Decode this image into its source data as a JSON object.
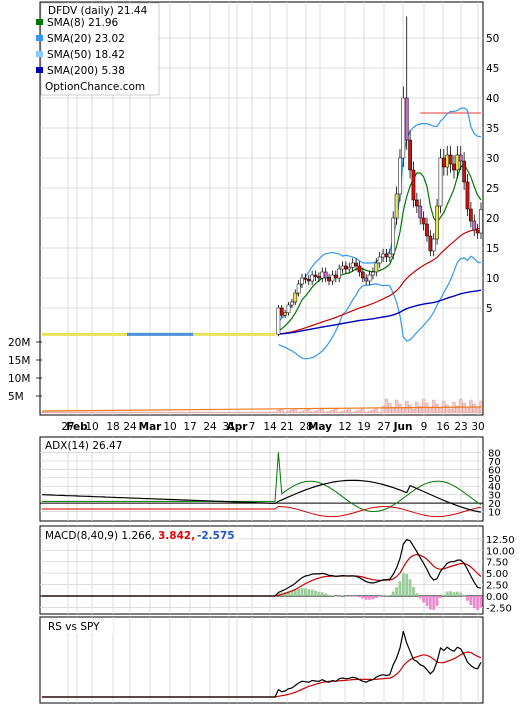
{
  "chart_data": [
    {
      "type": "line",
      "name": "price",
      "ticker": "DFDV (daily)",
      "last": "21.44",
      "source": "OptionChance.com",
      "legend": [
        {
          "label": "SMA(8)",
          "value": "21.96",
          "color": "#007700"
        },
        {
          "label": "SMA(20)",
          "value": "23.02",
          "color": "#3399ee"
        },
        {
          "label": "SMA(50)",
          "value": "18.42",
          "color": "#88ccff"
        },
        {
          "label": "SMA(200)",
          "value": "5.38",
          "color": "#0000bb"
        }
      ],
      "ylim": [
        -5,
        55
      ],
      "yticks": [
        5,
        10,
        15,
        20,
        25,
        30,
        35,
        40,
        45,
        50
      ],
      "resistance": 37.5,
      "x_ticks": [
        "27",
        "Feb",
        "10",
        "18",
        "24",
        "Mar",
        "10",
        "17",
        "24",
        "31",
        "Apr",
        "7",
        "14",
        "21",
        "28",
        "May",
        "12",
        "19",
        "27",
        "Jun",
        "9",
        "16",
        "23",
        "30"
      ],
      "volume_ticks": [
        "20M",
        "15M",
        "10M",
        "5M"
      ],
      "close": [
        0.6,
        0.6,
        0.6,
        0.6,
        0.6,
        0.6,
        0.6,
        0.6,
        0.6,
        0.6,
        0.6,
        0.6,
        0.6,
        0.6,
        0.6,
        0.6,
        0.6,
        0.6,
        0.6,
        0.6,
        0.6,
        0.6,
        0.6,
        0.6,
        0.6,
        0.6,
        0.6,
        0.6,
        0.6,
        0.6,
        0.6,
        0.6,
        0.6,
        0.6,
        0.6,
        0.6,
        0.6,
        0.6,
        0.6,
        0.6,
        0.6,
        0.6,
        0.6,
        0.6,
        0.6,
        0.6,
        0.6,
        0.6,
        0.6,
        0.6,
        0.6,
        0.6,
        0.6,
        0.6,
        0.6,
        0.6,
        0.6,
        0.6,
        0.6,
        0.6,
        0.6,
        0.6,
        0.6,
        0.6,
        0.6,
        0.6,
        0.6,
        0.6,
        0.6,
        0.6,
        5,
        3.8,
        4.2,
        5.5,
        6,
        7.5,
        9,
        10,
        9.8,
        9.5,
        10.5,
        10.2,
        10,
        11,
        10,
        9.5,
        10.5,
        10,
        11.5,
        12,
        11.5,
        11.8,
        12.5,
        12,
        11,
        10,
        9.5,
        10.5,
        11,
        12.5,
        13.5,
        14,
        13.5,
        14,
        20,
        24,
        30,
        40,
        33,
        28,
        23,
        22,
        20,
        19,
        17,
        14.5,
        16.5,
        22,
        30,
        28.5,
        30.5,
        29,
        28,
        30.5,
        29.5,
        26,
        21.5,
        19.5,
        18,
        17.5,
        21.44
      ]
    },
    {
      "type": "line",
      "name": "adx",
      "label": "ADX(14)",
      "value": "26.47",
      "ylim": [
        0,
        90
      ],
      "yticks": [
        10,
        20,
        30,
        40,
        50,
        60,
        70,
        80
      ]
    },
    {
      "type": "line",
      "name": "macd",
      "label": "MACD(8,40,9)",
      "macd": "1.266,",
      "signal": "3.842,",
      "histogram": "-2.575",
      "ylim": [
        -3.5,
        14
      ],
      "yticks": [
        -2.5,
        0,
        2.5,
        5,
        7.5,
        10,
        12.5
      ]
    },
    {
      "type": "line",
      "name": "rs",
      "label": "RS vs SPY"
    }
  ]
}
